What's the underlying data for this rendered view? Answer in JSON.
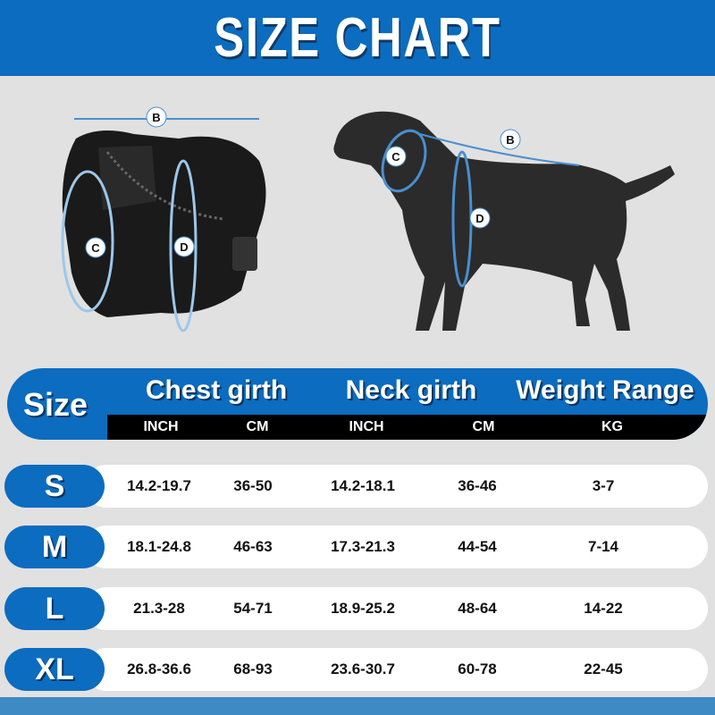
{
  "title": "SIZE CHART",
  "diagram_labels": {
    "b": "B",
    "c": "C",
    "d": "D"
  },
  "table": {
    "size_header": "Size",
    "groups": [
      "Chest girth",
      "Neck girth",
      "Weight Range"
    ],
    "units": [
      "INCH",
      "CM",
      "INCH",
      "CM",
      "KG"
    ],
    "rows": [
      {
        "size": "S",
        "chest_inch": "14.2-19.7",
        "chest_cm": "36-50",
        "neck_inch": "14.2-18.1",
        "neck_cm": "36-46",
        "weight_kg": "3-7"
      },
      {
        "size": "M",
        "chest_inch": "18.1-24.8",
        "chest_cm": "46-63",
        "neck_inch": "17.3-21.3",
        "neck_cm": "44-54",
        "weight_kg": "7-14"
      },
      {
        "size": "L",
        "chest_inch": "21.3-28",
        "chest_cm": "54-71",
        "neck_inch": "18.9-25.2",
        "neck_cm": "48-64",
        "weight_kg": "14-22"
      },
      {
        "size": "XL",
        "chest_inch": "26.8-36.6",
        "chest_cm": "68-93",
        "neck_inch": "23.6-30.7",
        "neck_cm": "60-78",
        "weight_kg": "22-45"
      }
    ]
  },
  "colors": {
    "brand_blue": "#0b6cc0",
    "background": "#e1e1e1",
    "footer_blue": "#3d8ac4"
  }
}
